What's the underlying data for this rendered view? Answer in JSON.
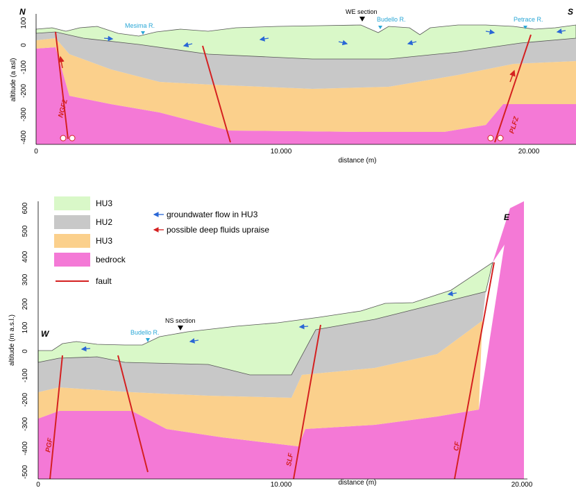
{
  "colors": {
    "hu3": "#d9f8c8",
    "hu2": "#c8c8c8",
    "hu3_deep": "#fbd08c",
    "bedrock": "#f479d6",
    "fault": "#d42020",
    "flow_arrow": "#2a67d6",
    "river": "#2aa7d6"
  },
  "ns_section": {
    "left_label": "N",
    "right_label": "S",
    "y_axis_label": "altitude (a asl)",
    "y_ticks": [
      "100",
      "0",
      "-100",
      "-200",
      "-300",
      "-400"
    ],
    "x_ticks": [
      "0",
      "10.000",
      "20.000"
    ],
    "x_axis_label": "distance (m)",
    "rivers": [
      "Mesima R.",
      "Budello R.",
      "Petrace R."
    ],
    "section_marker": "WE section",
    "fault_labels": [
      "NGFZ",
      "PLFZ"
    ]
  },
  "we_section": {
    "left_label": "W",
    "right_label": "E",
    "y_axis_label": "altitude (m a.s.l.)",
    "y_ticks": [
      "600",
      "500",
      "400",
      "300",
      "200",
      "100",
      "0",
      "-100",
      "-200",
      "-300",
      "-400",
      "-500"
    ],
    "x_ticks": [
      "0",
      "10.000",
      "20.000"
    ],
    "x_axis_label": "distance (m)",
    "rivers": [
      "Budello R."
    ],
    "section_marker": "NS section",
    "fault_labels": [
      "PGF",
      "SLF",
      "CF"
    ]
  },
  "legend": {
    "layers": [
      "HU3",
      "HU2",
      "HU3",
      "bedrock"
    ],
    "fault": "fault",
    "flow": "groundwater flow in HU3",
    "deep": "possible deep fluids upraise"
  }
}
